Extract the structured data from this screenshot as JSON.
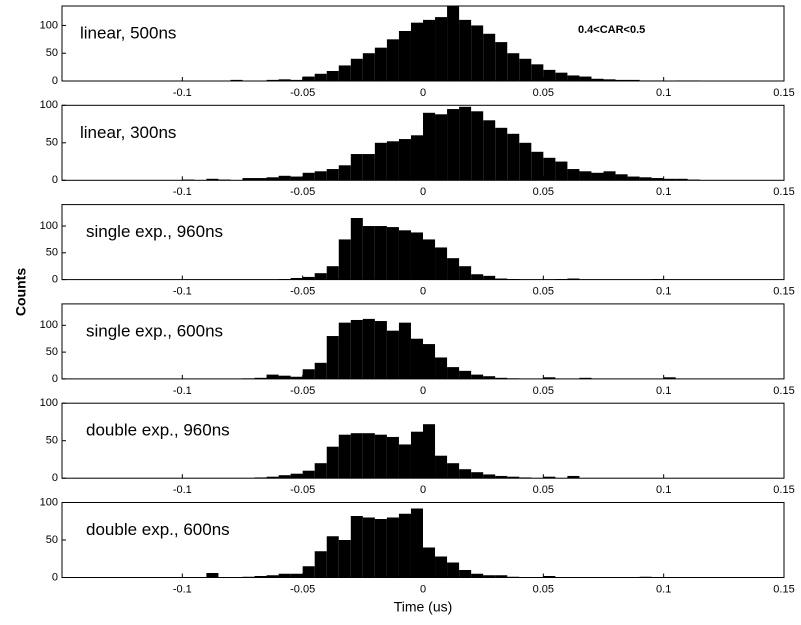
{
  "ylabel": "Counts",
  "xlabel": "Time (us)",
  "chart_data": [
    {
      "type": "histogram",
      "label": "linear,  500ns",
      "annotation": "0.4<CAR<0.5",
      "color": "#000000",
      "bins": [
        -0.11,
        -0.105,
        -0.1,
        -0.095,
        -0.09,
        -0.085,
        -0.08,
        -0.075,
        -0.07,
        -0.065,
        -0.06,
        -0.055,
        -0.05,
        -0.045,
        -0.04,
        -0.035,
        -0.03,
        -0.025,
        -0.02,
        -0.015,
        -0.01,
        -0.005,
        0,
        0.005,
        0.01,
        0.015,
        0.02,
        0.025,
        0.03,
        0.035,
        0.04,
        0.045,
        0.05,
        0.055,
        0.06,
        0.065,
        0.07,
        0.075,
        0.08,
        0.085,
        0.09,
        0.095,
        0.1,
        0.105,
        0.11,
        0.115,
        0.12
      ],
      "counts": [
        0,
        0,
        0,
        0,
        0,
        0,
        2,
        0,
        0,
        2,
        3,
        2,
        8,
        13,
        18,
        28,
        40,
        50,
        60,
        75,
        90,
        105,
        110,
        115,
        135,
        110,
        100,
        85,
        70,
        50,
        40,
        30,
        20,
        15,
        10,
        8,
        4,
        3,
        2,
        2,
        1,
        1,
        0,
        1,
        1,
        0
      ],
      "xlim": [
        -0.15,
        0.15
      ],
      "xticks": [
        -0.1,
        -0.05,
        0,
        0.05,
        0.1,
        0.15
      ],
      "ylim": [
        0,
        135
      ],
      "yticks": [
        0,
        50,
        100
      ]
    },
    {
      "type": "histogram",
      "label": "linear,  300ns",
      "color": "#000000",
      "bins": [
        -0.11,
        -0.105,
        -0.1,
        -0.095,
        -0.09,
        -0.085,
        -0.08,
        -0.075,
        -0.07,
        -0.065,
        -0.06,
        -0.055,
        -0.05,
        -0.045,
        -0.04,
        -0.035,
        -0.03,
        -0.025,
        -0.02,
        -0.015,
        -0.01,
        -0.005,
        0,
        0.005,
        0.01,
        0.015,
        0.02,
        0.025,
        0.03,
        0.035,
        0.04,
        0.045,
        0.05,
        0.055,
        0.06,
        0.065,
        0.07,
        0.075,
        0.08,
        0.085,
        0.09,
        0.095,
        0.1,
        0.105,
        0.11,
        0.115,
        0.12
      ],
      "counts": [
        0,
        0,
        1,
        0,
        2,
        1,
        0,
        3,
        3,
        4,
        6,
        5,
        10,
        12,
        15,
        20,
        35,
        35,
        50,
        52,
        55,
        60,
        90,
        88,
        95,
        98,
        92,
        80,
        70,
        62,
        50,
        38,
        30,
        25,
        15,
        12,
        10,
        12,
        8,
        5,
        4,
        3,
        2,
        2,
        1,
        0
      ],
      "xlim": [
        -0.15,
        0.15
      ],
      "xticks": [
        -0.1,
        -0.05,
        0,
        0.05,
        0.1,
        0.15
      ],
      "ylim": [
        0,
        100
      ],
      "yticks": [
        0,
        50,
        100
      ]
    },
    {
      "type": "histogram",
      "label": "single exp., 960ns",
      "color": "#000000",
      "bins": [
        -0.11,
        -0.105,
        -0.1,
        -0.095,
        -0.09,
        -0.085,
        -0.08,
        -0.075,
        -0.07,
        -0.065,
        -0.06,
        -0.055,
        -0.05,
        -0.045,
        -0.04,
        -0.035,
        -0.03,
        -0.025,
        -0.02,
        -0.015,
        -0.01,
        -0.005,
        0,
        0.005,
        0.01,
        0.015,
        0.02,
        0.025,
        0.03,
        0.035,
        0.04,
        0.045,
        0.05,
        0.055,
        0.06,
        0.065,
        0.07,
        0.075,
        0.08,
        0.085,
        0.09,
        0.095,
        0.1,
        0.105,
        0.11,
        0.115,
        0.12
      ],
      "counts": [
        0,
        0,
        0,
        0,
        0,
        0,
        0,
        0,
        0,
        0,
        1,
        3,
        5,
        12,
        25,
        75,
        115,
        100,
        100,
        98,
        92,
        88,
        75,
        60,
        40,
        25,
        10,
        7,
        2,
        1,
        0,
        0,
        0,
        1,
        2,
        0,
        0,
        0,
        0,
        0,
        0,
        1,
        0,
        0,
        0,
        0
      ],
      "xlim": [
        -0.15,
        0.15
      ],
      "xticks": [
        -0.1,
        -0.05,
        0,
        0.05,
        0.1,
        0.15
      ],
      "ylim": [
        0,
        140
      ],
      "yticks": [
        0,
        50,
        100
      ]
    },
    {
      "type": "histogram",
      "label": "single exp., 600ns",
      "color": "#000000",
      "bins": [
        -0.11,
        -0.105,
        -0.1,
        -0.095,
        -0.09,
        -0.085,
        -0.08,
        -0.075,
        -0.07,
        -0.065,
        -0.06,
        -0.055,
        -0.05,
        -0.045,
        -0.04,
        -0.035,
        -0.03,
        -0.025,
        -0.02,
        -0.015,
        -0.01,
        -0.005,
        0,
        0.005,
        0.01,
        0.015,
        0.02,
        0.025,
        0.03,
        0.035,
        0.04,
        0.045,
        0.05,
        0.055,
        0.06,
        0.065,
        0.07,
        0.075,
        0.08,
        0.085,
        0.09,
        0.095,
        0.1,
        0.105,
        0.11,
        0.115,
        0.12
      ],
      "counts": [
        0,
        0,
        0,
        0,
        0,
        0,
        0,
        1,
        2,
        8,
        6,
        4,
        18,
        30,
        80,
        105,
        110,
        112,
        108,
        90,
        105,
        75,
        65,
        40,
        22,
        15,
        8,
        5,
        2,
        1,
        0,
        0,
        3,
        0,
        0,
        2,
        0,
        0,
        0,
        0,
        0,
        0,
        3,
        0,
        0,
        0
      ],
      "xlim": [
        -0.15,
        0.15
      ],
      "xticks": [
        -0.1,
        -0.05,
        0,
        0.05,
        0.1,
        0.15
      ],
      "ylim": [
        0,
        140
      ],
      "yticks": [
        0,
        50,
        100
      ]
    },
    {
      "type": "histogram",
      "label": "double exp., 960ns",
      "color": "#000000",
      "bins": [
        -0.11,
        -0.105,
        -0.1,
        -0.095,
        -0.09,
        -0.085,
        -0.08,
        -0.075,
        -0.07,
        -0.065,
        -0.06,
        -0.055,
        -0.05,
        -0.045,
        -0.04,
        -0.035,
        -0.03,
        -0.025,
        -0.02,
        -0.015,
        -0.01,
        -0.005,
        0,
        0.005,
        0.01,
        0.015,
        0.02,
        0.025,
        0.03,
        0.035,
        0.04,
        0.045,
        0.05,
        0.055,
        0.06,
        0.065,
        0.07,
        0.075,
        0.08,
        0.085,
        0.09,
        0.095,
        0.1,
        0.105,
        0.11,
        0.115,
        0.12
      ],
      "counts": [
        0,
        0,
        0,
        0,
        0,
        0,
        0,
        0,
        1,
        2,
        4,
        6,
        10,
        20,
        42,
        58,
        60,
        60,
        58,
        55,
        45,
        62,
        72,
        30,
        20,
        12,
        8,
        5,
        3,
        2,
        1,
        0,
        2,
        0,
        3,
        0,
        0,
        0,
        0,
        0,
        0,
        0,
        0,
        0,
        0,
        0
      ],
      "xlim": [
        -0.15,
        0.15
      ],
      "xticks": [
        -0.1,
        -0.05,
        0,
        0.05,
        0.1,
        0.15
      ],
      "ylim": [
        0,
        100
      ],
      "yticks": [
        0,
        50,
        100
      ]
    },
    {
      "type": "histogram",
      "label": "double exp., 600ns",
      "color": "#000000",
      "bins": [
        -0.11,
        -0.105,
        -0.1,
        -0.095,
        -0.09,
        -0.085,
        -0.08,
        -0.075,
        -0.07,
        -0.065,
        -0.06,
        -0.055,
        -0.05,
        -0.045,
        -0.04,
        -0.035,
        -0.03,
        -0.025,
        -0.02,
        -0.015,
        -0.01,
        -0.005,
        0,
        0.005,
        0.01,
        0.015,
        0.02,
        0.025,
        0.03,
        0.035,
        0.04,
        0.045,
        0.05,
        0.055,
        0.06,
        0.065,
        0.07,
        0.075,
        0.08,
        0.085,
        0.09,
        0.095,
        0.1,
        0.105,
        0.11,
        0.115,
        0.12
      ],
      "counts": [
        0,
        0,
        0,
        0,
        6,
        0,
        0,
        1,
        2,
        3,
        5,
        5,
        15,
        35,
        55,
        50,
        82,
        80,
        78,
        80,
        85,
        92,
        40,
        28,
        20,
        10,
        5,
        3,
        3,
        1,
        0,
        0,
        2,
        0,
        0,
        0,
        0,
        0,
        0,
        0,
        1,
        0,
        0,
        0,
        0,
        0
      ],
      "xlim": [
        -0.15,
        0.15
      ],
      "xticks": [
        -0.1,
        -0.05,
        0,
        0.05,
        0.1,
        0.15
      ],
      "ylim": [
        0,
        100
      ],
      "yticks": [
        0,
        50,
        100
      ]
    }
  ]
}
